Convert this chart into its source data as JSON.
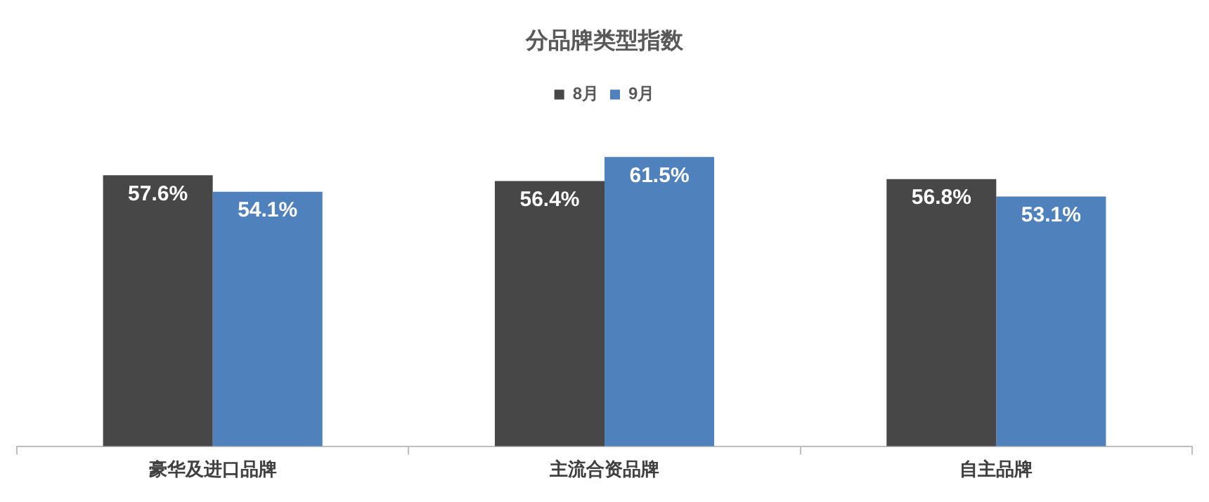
{
  "chart_data": {
    "type": "bar",
    "title": "分品牌类型指数",
    "categories": [
      "豪华及进口品牌",
      "主流合资品牌",
      "自主品牌"
    ],
    "series": [
      {
        "name": "8月",
        "color": "#474747",
        "values": [
          57.6,
          56.4,
          56.8
        ],
        "value_labels": [
          "57.6%",
          "56.4%",
          "56.8%"
        ]
      },
      {
        "name": "9月",
        "color": "#4f81bd",
        "values": [
          54.1,
          61.5,
          53.1
        ],
        "value_labels": [
          "54.1%",
          "61.5%",
          "53.1%"
        ]
      }
    ],
    "tick_labels": "x",
    "legend": "top"
  }
}
